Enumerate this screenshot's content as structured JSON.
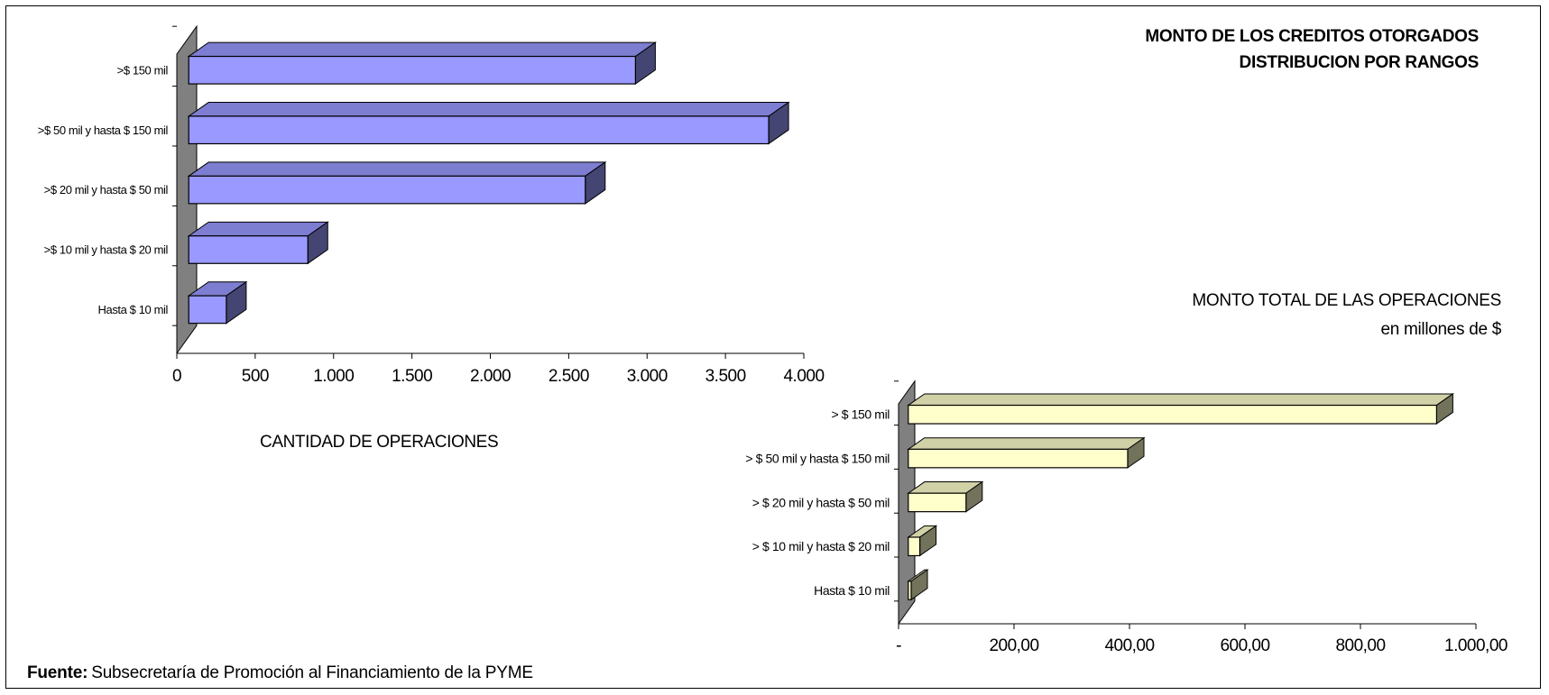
{
  "title_line1": "MONTO DE LOS CREDITOS OTORGADOS",
  "title_line2": "DISTRIBUCION POR RANGOS",
  "chart_data": [
    {
      "type": "bar",
      "orientation": "horizontal",
      "style": "3d",
      "categories": [
        "Hasta $ 10 mil",
        ">$ 10 mil y hasta $ 20 mil",
        ">$ 20 mil y hasta $ 50 mil",
        ">$ 50 mil y hasta $ 150 mil",
        ">$ 150 mil"
      ],
      "values": [
        240,
        760,
        2530,
        3700,
        2850
      ],
      "xlabel": "CANTIDAD DE OPERACIONES",
      "xlim": [
        0,
        4000
      ],
      "xticks": [
        "0",
        "500",
        "1.000",
        "1.500",
        "2.000",
        "2.500",
        "3.000",
        "3.500",
        "4.000"
      ],
      "color": "#9999ff",
      "grid": false
    },
    {
      "type": "bar",
      "orientation": "horizontal",
      "style": "3d",
      "categories": [
        "Hasta $ 10 mil",
        "> $ 10 mil y hasta $ 20 mil",
        "> $ 20 mil y hasta $ 50 mil",
        "> $ 50 mil y hasta $ 150 mil",
        "> $ 150 mil"
      ],
      "values": [
        5,
        20,
        100,
        380,
        915
      ],
      "title_line1": "MONTO TOTAL DE LAS OPERACIONES",
      "title_line2": "en millones de $",
      "xlim": [
        0,
        1000
      ],
      "xticks": [
        "-",
        "200,00",
        "400,00",
        "600,00",
        "800,00",
        "1.000,00"
      ],
      "color": "#ffffcc",
      "grid": false
    }
  ],
  "source_label": "Fuente:",
  "source_text": "Subsecretaría de Promoción al Financiamiento de la PYME"
}
